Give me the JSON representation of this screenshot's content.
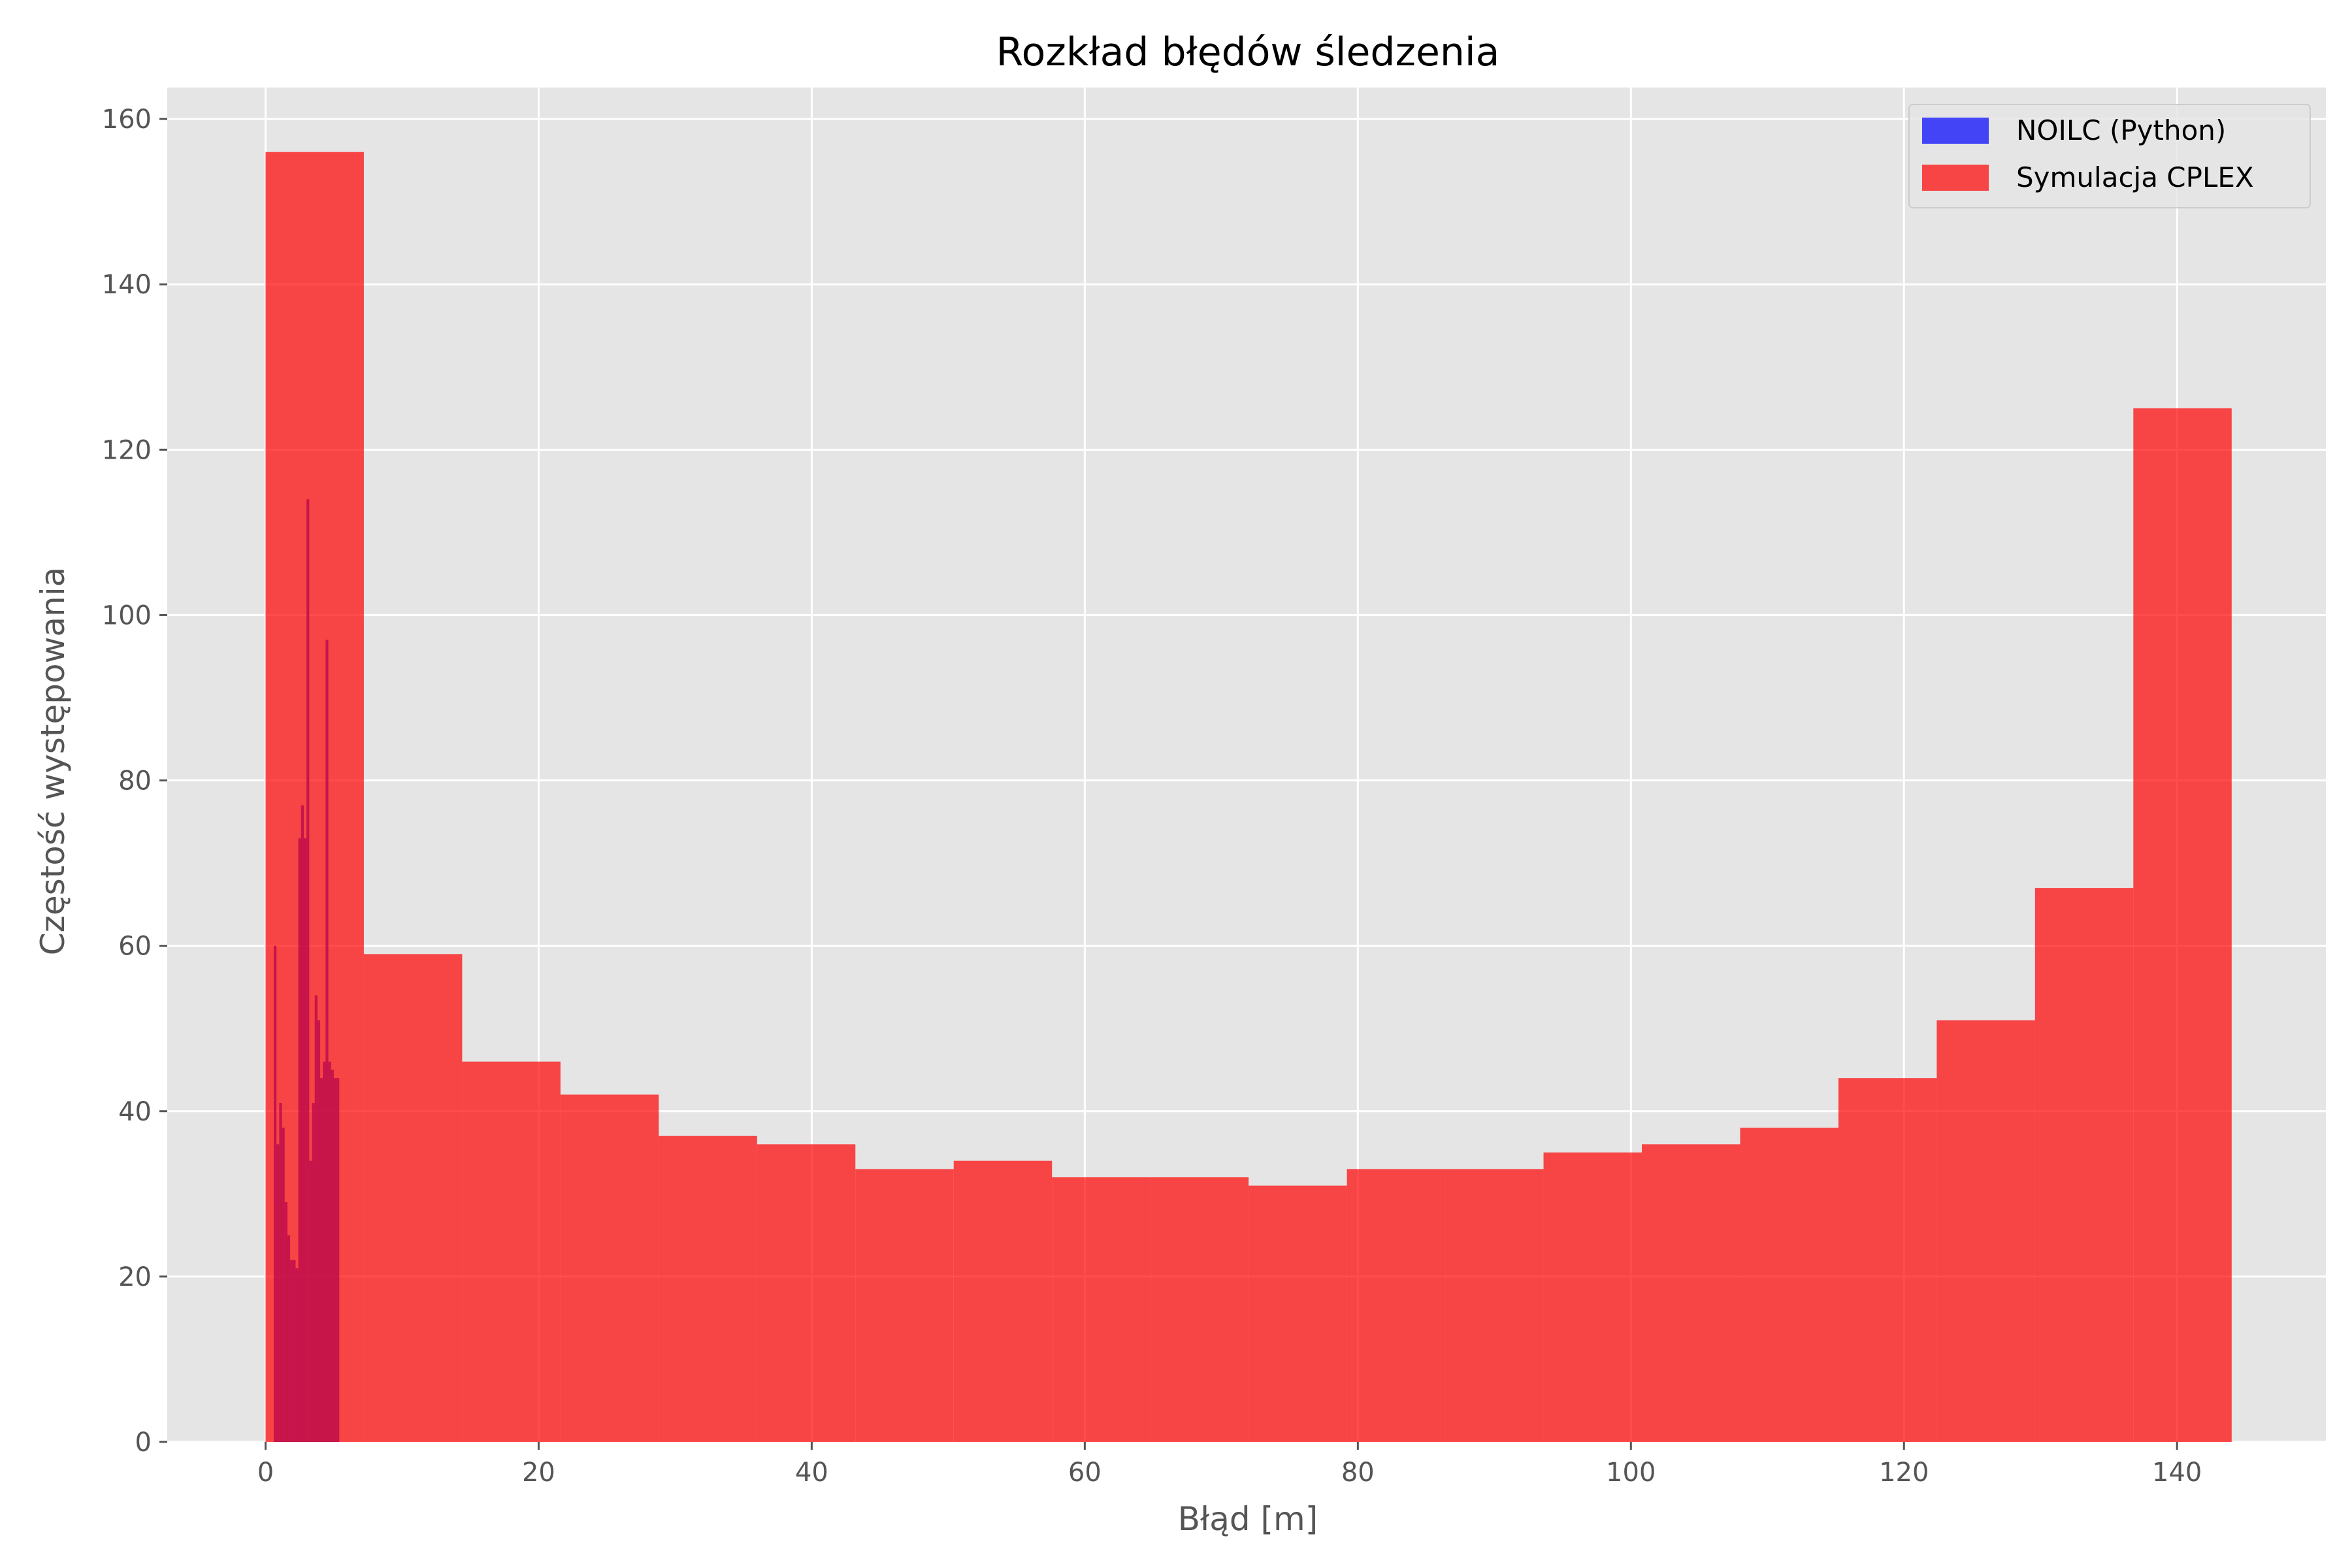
{
  "chart_data": {
    "type": "bar",
    "title": "Rozkład błędów śledzenia",
    "xlabel": "Błąd [m]",
    "ylabel": "Częstość występowania",
    "xlim": [
      -7.2,
      150.9
    ],
    "ylim": [
      0,
      163.8
    ],
    "x_ticks": [
      0,
      20,
      40,
      60,
      80,
      100,
      120,
      140
    ],
    "y_ticks": [
      0,
      20,
      40,
      60,
      80,
      100,
      120,
      140,
      160
    ],
    "grid": true,
    "legend_position": "top-right",
    "series": [
      {
        "name": "NOILC (Python)",
        "color": "#0000ff",
        "alpha": 0.7,
        "bin_edges": [
          0.6,
          0.8,
          1.0,
          1.2,
          1.4,
          1.6,
          1.8,
          2.0,
          2.2,
          2.4,
          2.6,
          2.8,
          3.0,
          3.2,
          3.4,
          3.6,
          3.8,
          4.0,
          4.2,
          4.4,
          4.6,
          4.8,
          5.0,
          5.2,
          5.4
        ],
        "counts": [
          60,
          36,
          41,
          38,
          29,
          25,
          22,
          22,
          21,
          73,
          77,
          73,
          114,
          34,
          41,
          54,
          51,
          44,
          46,
          97,
          46,
          45,
          44,
          44
        ]
      },
      {
        "name": "Symulacja CPLEX",
        "color": "#ff0000",
        "alpha": 0.7,
        "bin_edges": [
          0.0,
          7.2,
          14.4,
          21.6,
          28.8,
          36.0,
          43.2,
          50.4,
          57.6,
          64.8,
          72.0,
          79.2,
          86.4,
          93.6,
          100.8,
          108.0,
          115.2,
          122.4,
          129.6,
          136.8,
          144.0
        ],
        "counts": [
          156,
          59,
          46,
          42,
          37,
          36,
          33,
          34,
          32,
          32,
          31,
          33,
          33,
          35,
          36,
          38,
          44,
          51,
          67,
          125
        ]
      }
    ]
  }
}
